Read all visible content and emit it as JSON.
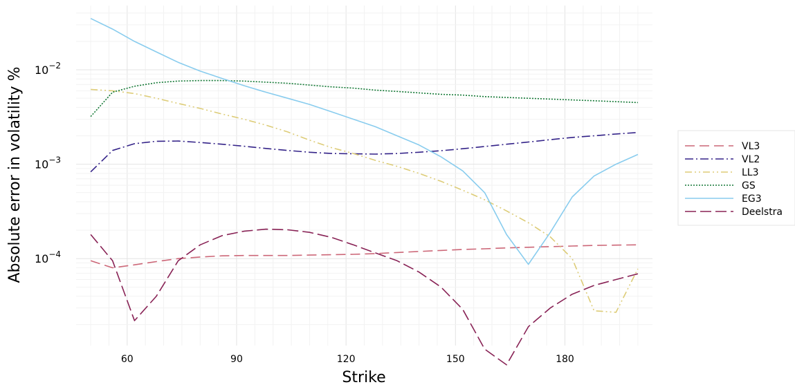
{
  "chart_data": {
    "type": "line",
    "xlabel": "Strike",
    "ylabel": "Absolute error in volatility %",
    "yscale": "log",
    "xlim": [
      46,
      204
    ],
    "ylim": [
      1.2e-05,
      0.048
    ],
    "x_ticks": [
      60,
      90,
      120,
      150,
      180
    ],
    "y_ticks": [
      {
        "value": 0.01,
        "base": "10",
        "exp": "−2"
      },
      {
        "value": 0.001,
        "base": "10",
        "exp": "−3"
      },
      {
        "value": 0.0001,
        "base": "10",
        "exp": "−4"
      }
    ],
    "grid": true,
    "legend_position": "right",
    "x": [
      50,
      56,
      62,
      68,
      74,
      80,
      86,
      92,
      98,
      104,
      110,
      116,
      122,
      128,
      134,
      140,
      146,
      152,
      158,
      164,
      170,
      176,
      182,
      188,
      194,
      200
    ],
    "series": [
      {
        "name": "VL3",
        "color": "#cc6677",
        "dash": "14,7",
        "values": [
          9.5e-05,
          8e-05,
          8.6e-05,
          9.3e-05,
          0.0001,
          0.000104,
          0.000107,
          0.000108,
          0.000108,
          0.000108,
          0.000109,
          0.00011,
          0.000111,
          0.000113,
          0.000116,
          0.000119,
          0.000122,
          0.000125,
          0.000127,
          0.00013,
          0.000132,
          0.000134,
          0.000136,
          0.000138,
          0.000139,
          0.00014
        ]
      },
      {
        "name": "VL2",
        "color": "#332288",
        "dash": "12,4,2,4",
        "values": [
          0.00083,
          0.0014,
          0.00165,
          0.00175,
          0.00176,
          0.0017,
          0.00163,
          0.00155,
          0.00147,
          0.0014,
          0.00134,
          0.0013,
          0.00129,
          0.00128,
          0.0013,
          0.00134,
          0.00139,
          0.00146,
          0.00154,
          0.00163,
          0.00172,
          0.00182,
          0.00192,
          0.002,
          0.00209,
          0.00217
        ]
      },
      {
        "name": "LL3",
        "color": "#ddcc77",
        "dash": "10,4,2,4,2,4",
        "values": [
          0.0062,
          0.006,
          0.0056,
          0.005,
          0.0044,
          0.0039,
          0.0034,
          0.003,
          0.0026,
          0.0022,
          0.0018,
          0.0015,
          0.0013,
          0.0011,
          0.00095,
          0.0008,
          0.00066,
          0.00053,
          0.00042,
          0.00032,
          0.00024,
          0.00017,
          0.0001,
          2.8e-05,
          2.7e-05,
          7.8e-05
        ]
      },
      {
        "name": "GS",
        "color": "#117733",
        "dash": "2,2",
        "values": [
          0.0032,
          0.0058,
          0.0067,
          0.0073,
          0.0076,
          0.0077,
          0.0077,
          0.0076,
          0.0074,
          0.0072,
          0.0069,
          0.0066,
          0.0064,
          0.0061,
          0.0059,
          0.0057,
          0.0055,
          0.0054,
          0.0052,
          0.0051,
          0.005,
          0.0049,
          0.0048,
          0.0047,
          0.0046,
          0.0045
        ]
      },
      {
        "name": "EG3",
        "color": "#88ccee",
        "dash": "",
        "values": [
          0.035,
          0.027,
          0.02,
          0.0155,
          0.012,
          0.0097,
          0.0081,
          0.0068,
          0.0058,
          0.005,
          0.0043,
          0.0036,
          0.003,
          0.0025,
          0.002,
          0.0016,
          0.0012,
          0.00085,
          0.0005,
          0.00018,
          8.7e-05,
          0.00019,
          0.00045,
          0.00075,
          0.001,
          0.00127
        ]
      },
      {
        "name": "Deelstra",
        "color": "#882255",
        "dash": "16,6",
        "values": [
          0.00018,
          9.5e-05,
          2.2e-05,
          4e-05,
          9.5e-05,
          0.00014,
          0.000175,
          0.000195,
          0.000205,
          0.000202,
          0.00019,
          0.000168,
          0.00014,
          0.000115,
          9.5e-05,
          7.2e-05,
          5e-05,
          2.9e-05,
          1.1e-05,
          7.5e-06,
          1.9e-05,
          3e-05,
          4.2e-05,
          5.2e-05,
          6e-05,
          6.9e-05
        ]
      }
    ]
  }
}
